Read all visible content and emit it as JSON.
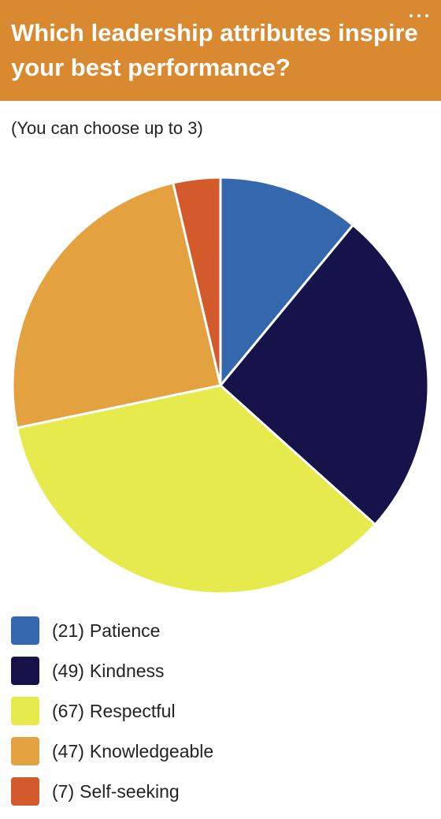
{
  "chart_data": {
    "type": "pie",
    "title": "Which leadership attributes inspire your best performance?",
    "subtitle": "(You can choose up to 3)",
    "categories": [
      "Patience",
      "Kindness",
      "Respectful",
      "Knowledgeable",
      "Self-seeking"
    ],
    "values": [
      21,
      49,
      67,
      47,
      7
    ],
    "value_labels": [
      "(21)",
      "(49)",
      "(67)",
      "(47)",
      "(7)"
    ],
    "colors": [
      "#3567ad",
      "#16124a",
      "#e7ea4d",
      "#e3a23f",
      "#d35a2a"
    ]
  }
}
